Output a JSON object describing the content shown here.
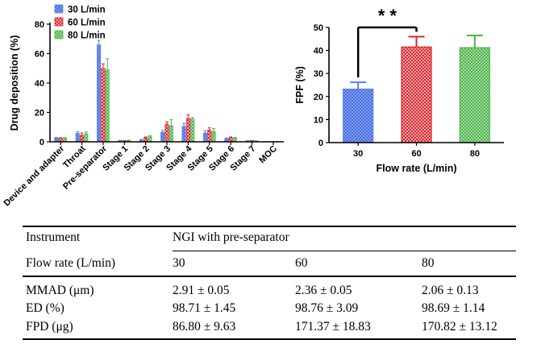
{
  "chart_data": [
    {
      "type": "bar",
      "ylabel": "Drug deposition (%)",
      "xlabel": "",
      "ylim": [
        0,
        80
      ],
      "yticks": [
        0,
        20,
        40,
        60,
        80
      ],
      "categories": [
        "Device and adapter",
        "Throat",
        "Pre-separator",
        "Stage 1",
        "Stage 2",
        "Stage 3",
        "Stage 4",
        "Stage 5",
        "Stage 6",
        "Stage 7",
        "MOC"
      ],
      "series": [
        {
          "name": "30 L/min",
          "color": "#5b7fe8",
          "values": [
            2.6,
            5.8,
            66,
            0.8,
            1.3,
            6.5,
            10.5,
            6.0,
            2.2,
            0.6,
            0.1
          ],
          "errors": [
            0.4,
            1.0,
            3.0,
            0.2,
            0.3,
            1.2,
            2.0,
            1.5,
            0.4,
            0.2,
            0.05
          ]
        },
        {
          "name": "60 L/min",
          "color": "#d8262e",
          "values": [
            2.4,
            4.5,
            50,
            0.6,
            2.8,
            12.0,
            16.0,
            8.0,
            2.8,
            0.7,
            0.1
          ],
          "errors": [
            0.4,
            1.5,
            3.0,
            0.2,
            0.5,
            1.5,
            2.5,
            1.5,
            0.5,
            0.2,
            0.05
          ]
        },
        {
          "name": "80 L/min",
          "color": "#4fb24c",
          "values": [
            2.5,
            5.5,
            49,
            0.9,
            3.5,
            11.0,
            15.5,
            7.0,
            2.5,
            0.5,
            0.1
          ],
          "errors": [
            0.4,
            1.2,
            7.5,
            0.3,
            0.6,
            4.0,
            1.0,
            2.0,
            0.5,
            0.2,
            0.05
          ]
        }
      ],
      "legend": "top-left"
    },
    {
      "type": "bar",
      "ylabel": "FPF (%)",
      "xlabel": "Flow rate (L/min)",
      "ylim": [
        0,
        50
      ],
      "yticks": [
        0,
        10,
        20,
        30,
        40,
        50
      ],
      "categories": [
        "30",
        "60",
        "80"
      ],
      "values": [
        23.2,
        41.5,
        41.2
      ],
      "errors": [
        3.0,
        4.5,
        5.3
      ],
      "colors": [
        "#5b7fe8",
        "#d8262e",
        "#4fb24c"
      ],
      "annotation": "* *"
    }
  ],
  "table": {
    "instrument_label": "Instrument",
    "instrument_value": "NGI with pre-separator",
    "flow_label": "Flow rate (L/min)",
    "flows": [
      "30",
      "60",
      "80"
    ],
    "rows": [
      {
        "label": "MMAD (μm)",
        "values": [
          "2.91 ± 0.05",
          "2.36 ± 0.05",
          "2.06 ± 0.13"
        ]
      },
      {
        "label": "ED (%)",
        "values": [
          "98.71 ± 1.45",
          "98.76 ± 3.09",
          "98.69 ± 1.14"
        ]
      },
      {
        "label": "FPD (μg)",
        "values": [
          "86.80 ± 9.63",
          "171.37 ± 18.83",
          "170.82 ± 13.12"
        ]
      }
    ]
  }
}
